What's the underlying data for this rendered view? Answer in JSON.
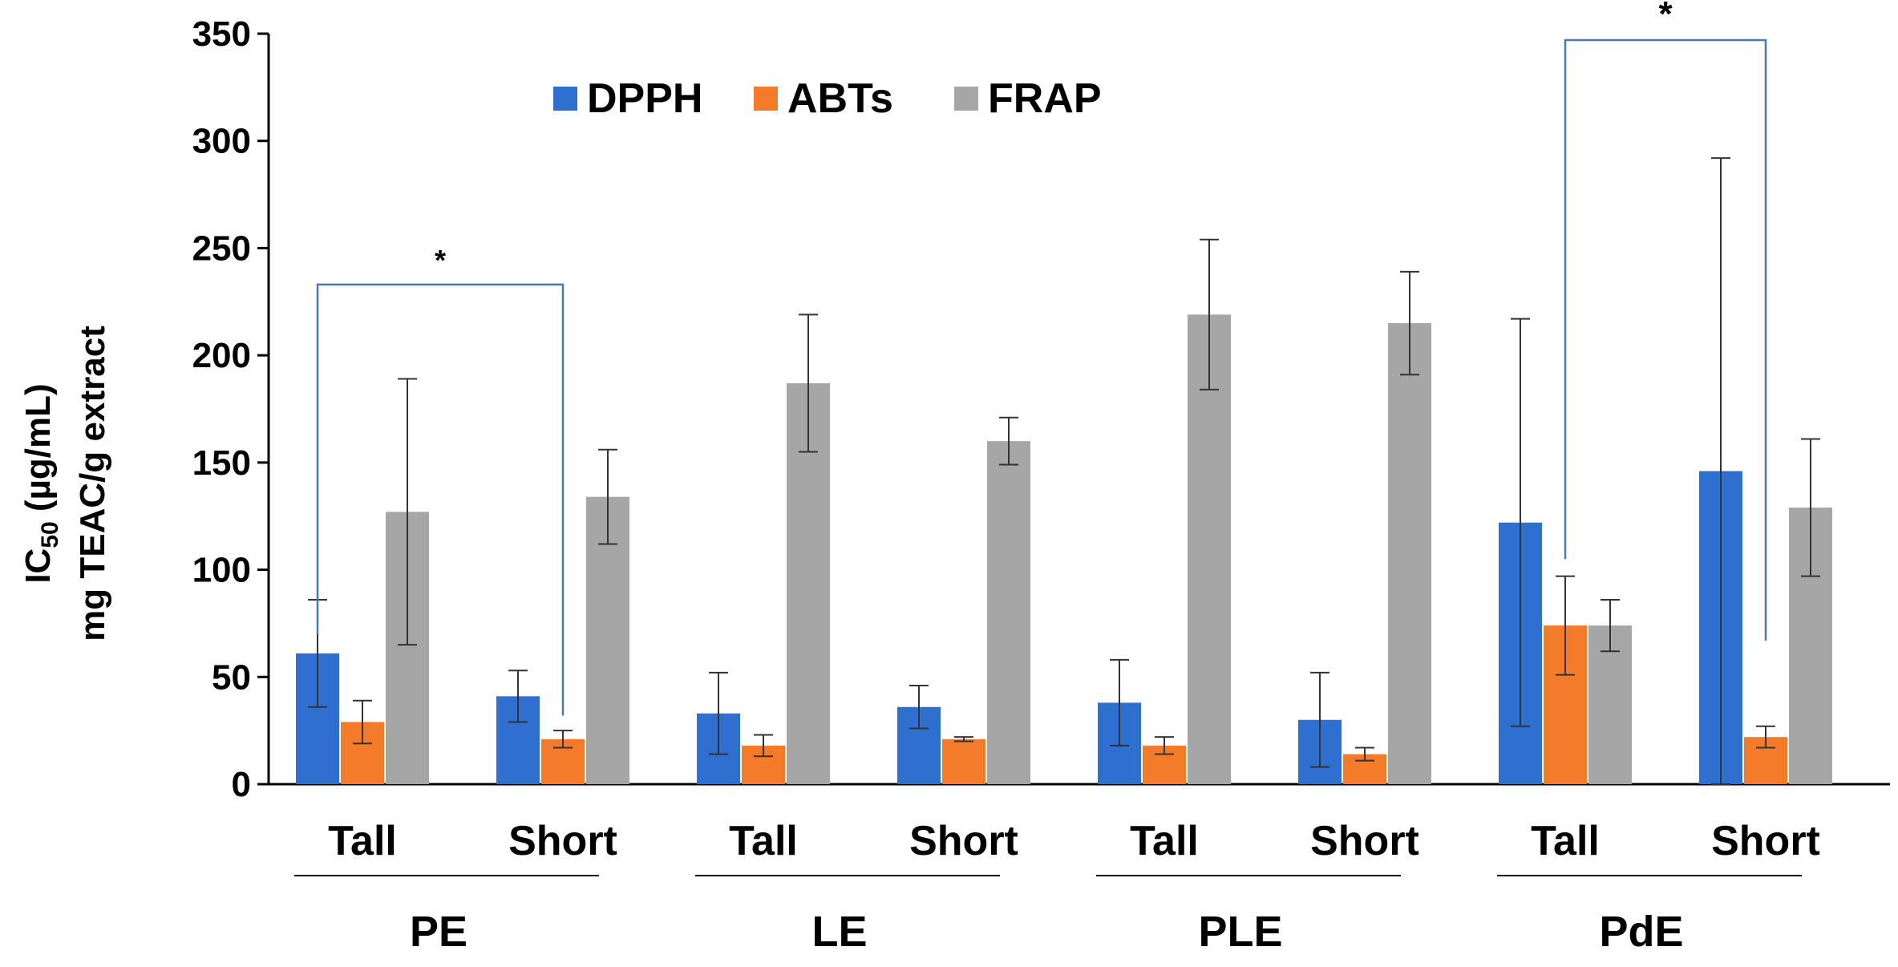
{
  "chart_data": {
    "type": "bar",
    "title": "",
    "xlabel": "",
    "ylabel": {
      "line1_main": "IC",
      "line1_sub": "50",
      "line1_rest": " (µg/mL)",
      "line2": "mg TEAC/g extract"
    },
    "ylim": [
      0,
      350
    ],
    "yticks": [
      "0",
      "50",
      "100",
      "150",
      "200",
      "250",
      "300",
      "350"
    ],
    "grid": false,
    "legend_position": "top-left",
    "categories": [
      "Tall",
      "Short",
      "Tall",
      "Short",
      "Tall",
      "Short",
      "Tall",
      "Short"
    ],
    "groups": [
      "PE",
      "LE",
      "PLE",
      "PdE"
    ],
    "series": [
      {
        "name": "DPPH",
        "color": "#2E6FD0",
        "values": [
          61,
          41,
          33,
          36,
          38,
          30,
          122,
          146
        ],
        "errors": [
          25,
          12,
          19,
          10,
          20,
          22,
          95,
          146
        ]
      },
      {
        "name": "ABTs",
        "color": "#F47B2A",
        "values": [
          29,
          21,
          18,
          21,
          18,
          14,
          74,
          22
        ],
        "errors": [
          10,
          4,
          5,
          1,
          4,
          3,
          23,
          5
        ]
      },
      {
        "name": "FRAP",
        "color": "#A6A6A6",
        "values": [
          127,
          134,
          187,
          160,
          219,
          215,
          74,
          129
        ],
        "errors": [
          62,
          22,
          32,
          11,
          35,
          24,
          12,
          32
        ]
      }
    ],
    "significance": [
      {
        "label": "*",
        "group": "PE",
        "from_category": 0,
        "from_series": "DPPH",
        "to_category": 1,
        "to_series": "ABTs",
        "bracket_value": 233,
        "from_bottom": 70,
        "to_bottom": 32
      },
      {
        "label": "*",
        "group": "PdE",
        "from_category": 6,
        "from_series": "ABTs",
        "to_category": 7,
        "to_series": "ABTs",
        "bracket_value": 347,
        "from_bottom": 105,
        "to_bottom": 67
      }
    ]
  }
}
